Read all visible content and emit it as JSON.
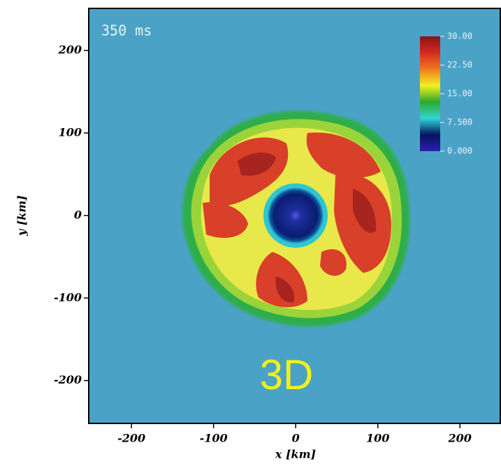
{
  "chart_data": {
    "type": "image",
    "title": "350 ms",
    "annotation": "3D",
    "x_label": "x [km]",
    "y_label": "y [km]",
    "xlim": [
      -252,
      250
    ],
    "ylim": [
      -252,
      251
    ],
    "xticks": [
      -200,
      -100,
      0,
      100,
      200
    ],
    "yticks": [
      -200,
      -100,
      0,
      100,
      200
    ],
    "colorbar": {
      "clim": [
        0,
        30
      ],
      "ticks": [
        {
          "value": 30,
          "label": "30.00"
        },
        {
          "value": 22.5,
          "label": "22.50"
        },
        {
          "value": 15,
          "label": "15.00"
        },
        {
          "value": 7.5,
          "label": "7.500"
        },
        {
          "value": 0,
          "label": "0.000"
        }
      ],
      "colormap": [
        "#2a1fb0",
        "#06145e",
        "#2fd6d6",
        "#2fa82a",
        "#f4f020",
        "#f07a20",
        "#d42a20",
        "#8a1414"
      ]
    }
  }
}
